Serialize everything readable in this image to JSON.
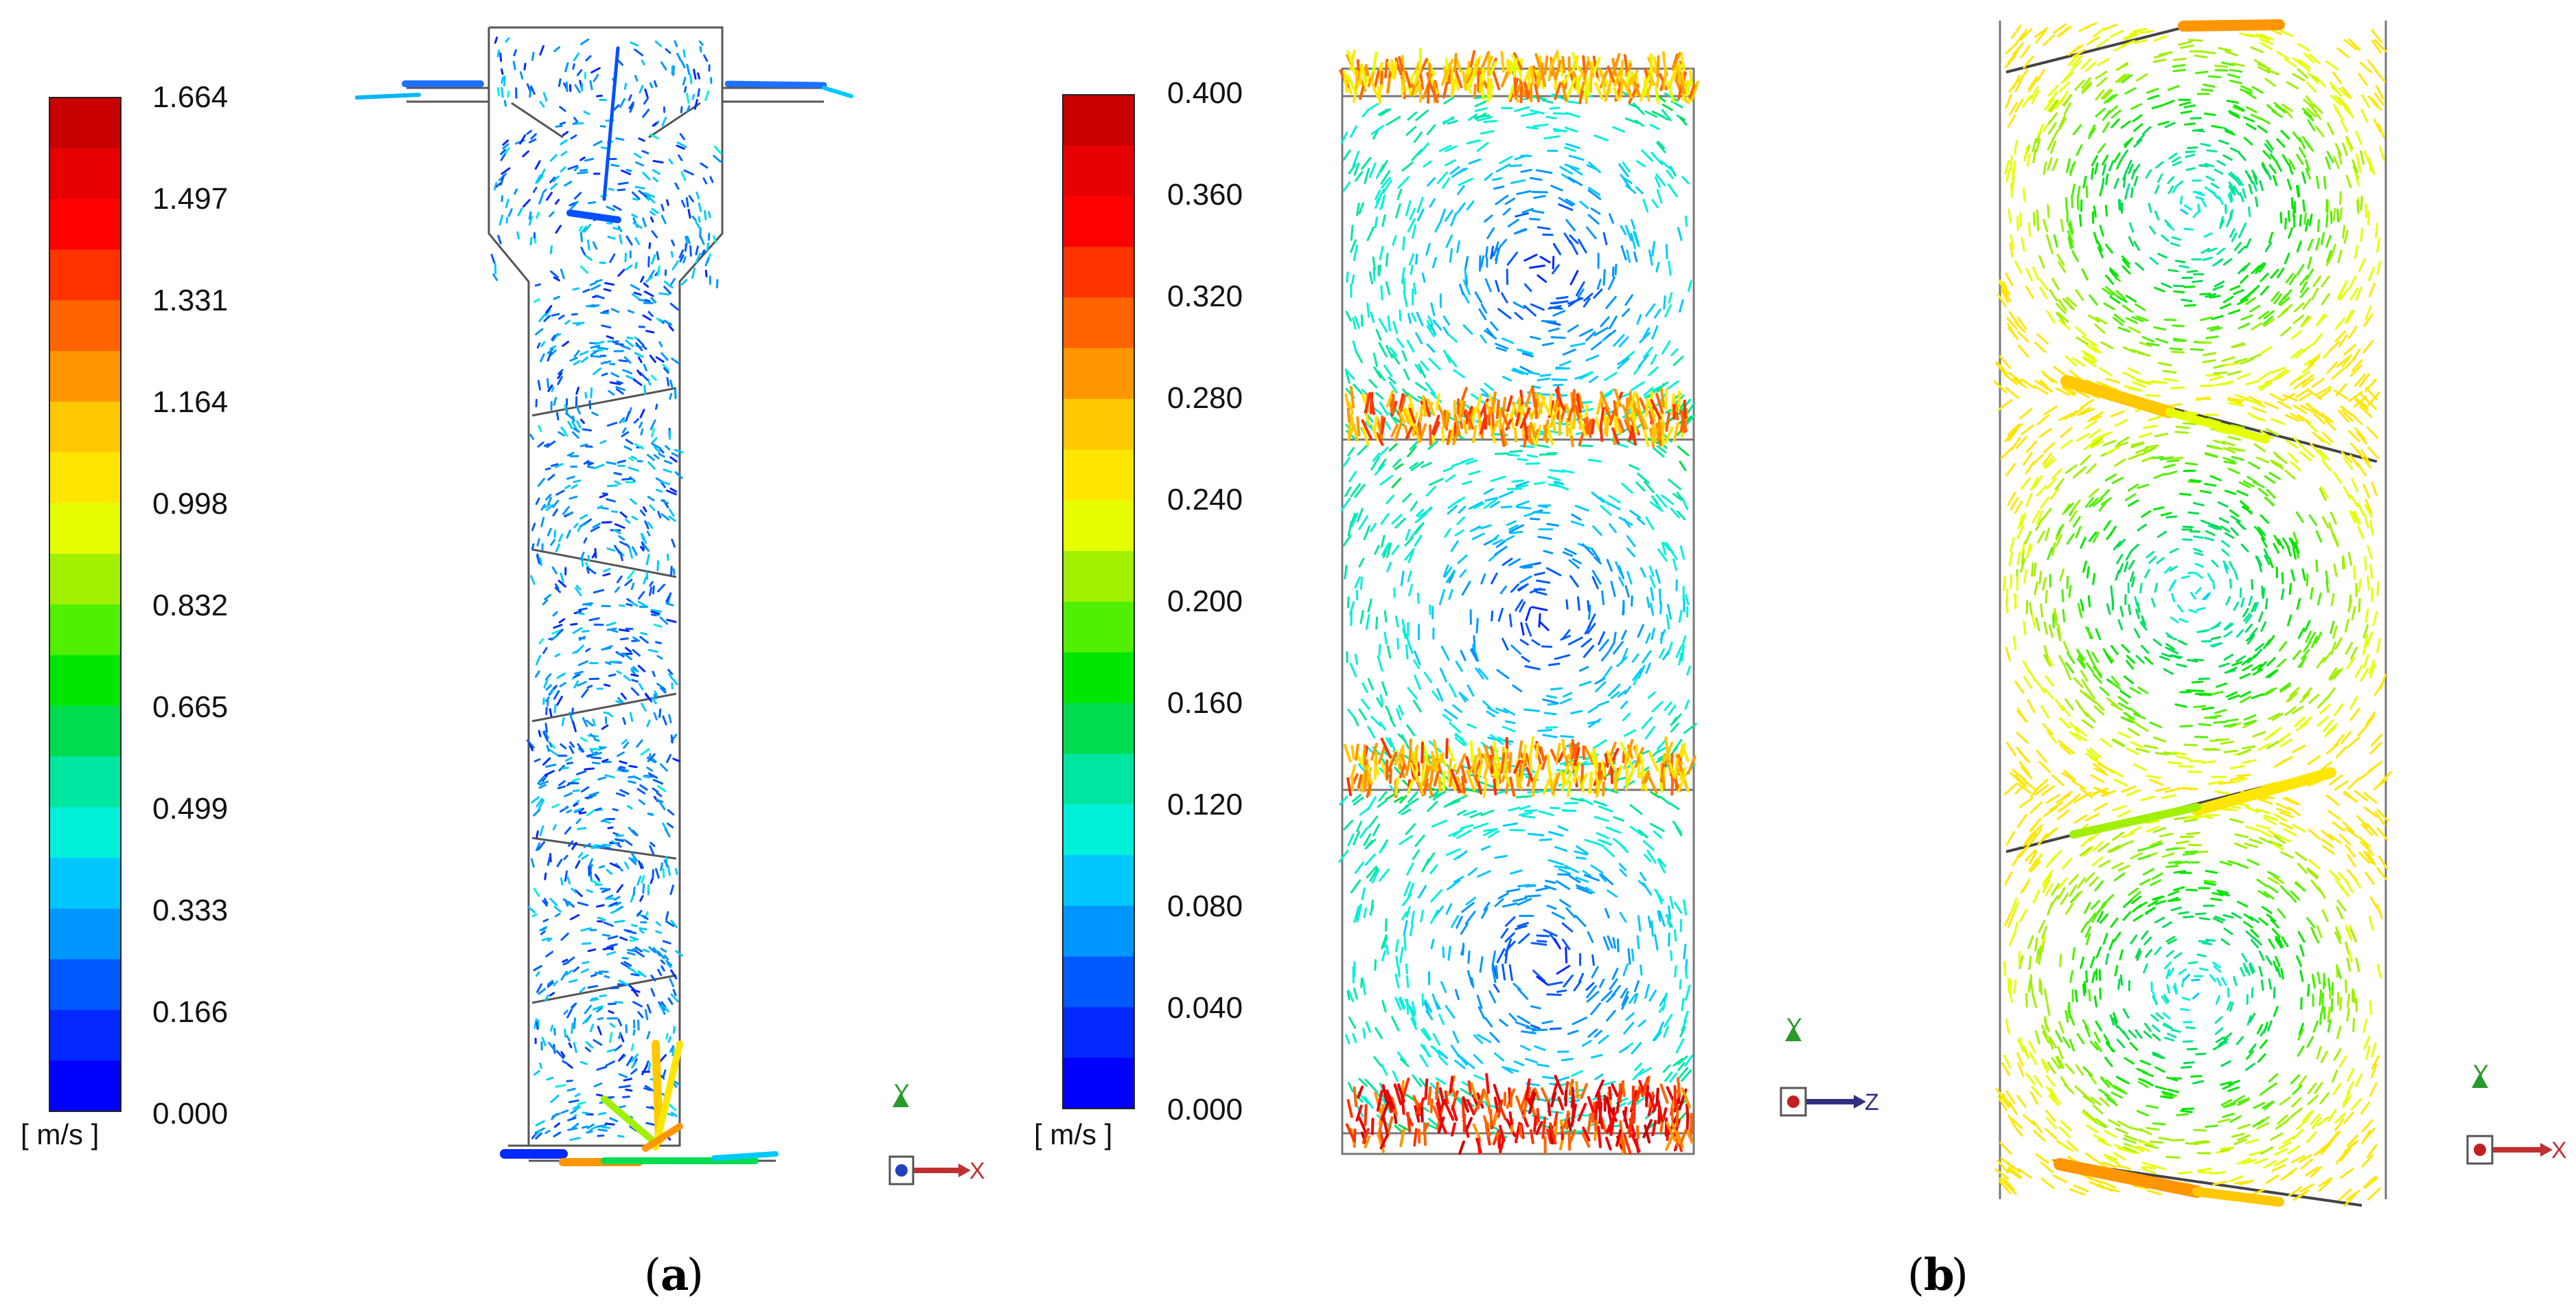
{
  "figure": {
    "panel_a_label": {
      "open": "(",
      "letter": "a",
      "close": ")"
    },
    "panel_b_label": {
      "open": "(",
      "letter": "b",
      "close": ")"
    }
  },
  "legend_a": {
    "unit": "[ m/s ]",
    "ticks": [
      "1.664",
      "1.497",
      "1.331",
      "1.164",
      "0.998",
      "0.832",
      "0.665",
      "0.499",
      "0.333",
      "0.166",
      "0.000"
    ],
    "max_value": 1.664
  },
  "legend_b": {
    "unit": "[ m/s ]",
    "ticks": [
      "0.400",
      "0.360",
      "0.320",
      "0.280",
      "0.240",
      "0.200",
      "0.160",
      "0.120",
      "0.080",
      "0.040",
      "0.000"
    ],
    "max_value": 0.4
  },
  "colormap": [
    "#0000ff",
    "#0028ff",
    "#005aff",
    "#0096ff",
    "#00c8ff",
    "#00f0dc",
    "#00e6a0",
    "#00dc50",
    "#00e600",
    "#50f000",
    "#a0f000",
    "#e6ff00",
    "#ffe600",
    "#ffc800",
    "#ff9600",
    "#ff6400",
    "#ff3200",
    "#ff0000",
    "#e60000",
    "#c80000"
  ],
  "axes": {
    "panel_a": {
      "vertical": "Y",
      "horizontal": "X"
    },
    "panel_b_left": {
      "vertical": "Y",
      "horizontal": "Z"
    },
    "panel_b_right": {
      "vertical": "Y",
      "horizontal": "X"
    }
  },
  "colors": {
    "outline": "#555555",
    "axis_y": "#2a9a2a",
    "axis_x": "#c03030",
    "axis_z": "#303080"
  }
}
